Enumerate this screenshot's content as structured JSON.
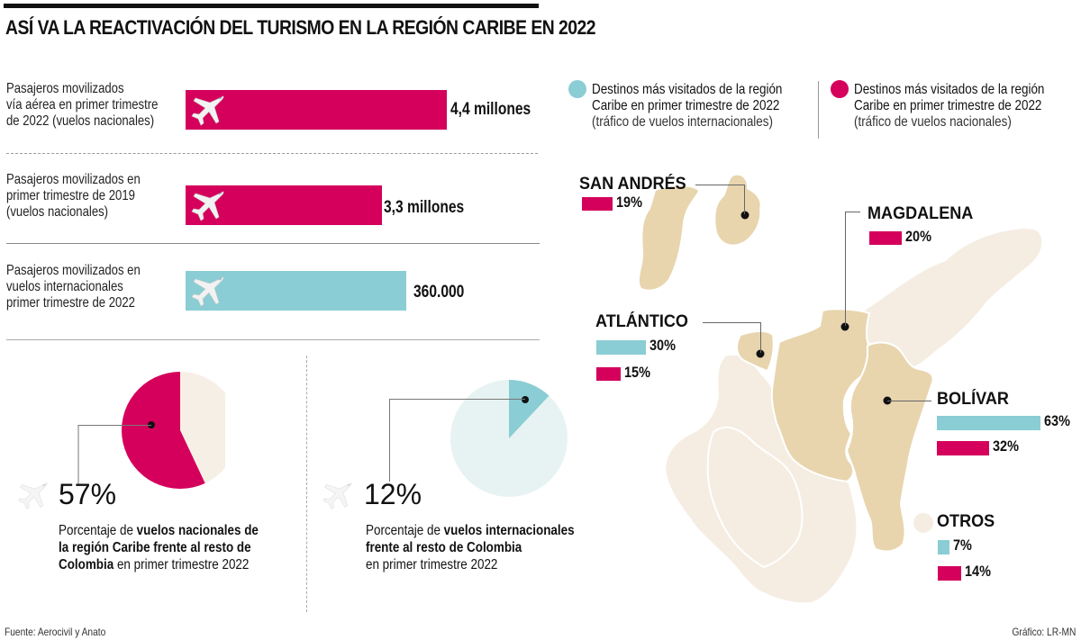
{
  "header": {
    "title": "ASÍ VA LA REACTIVACIÓN DEL TURISMO EN LA REGIÓN CARIBE EN 2022"
  },
  "colors": {
    "magenta": "#d4005c",
    "cyan": "#8acdd4",
    "map_highlight": "#e8d5ae",
    "map_other": "#f5ede2",
    "pie_bg_nat": "#f6efe6",
    "pie_bg_int": "#e6f3f2"
  },
  "chart_data": [
    {
      "type": "bar",
      "title": "Pasajeros movilizados",
      "categories": [
        "Pasajeros movilizados vía aérea en primer trimestre de 2022 (vuelos nacionales)",
        "Pasajeros movilizados en primer trimestre de 2019 (vuelos nacionales)",
        "Pasajeros movilizados en vuelos internacionales primer trimestre de 2022"
      ],
      "values": [
        4400000,
        3300000,
        360000
      ],
      "value_labels": [
        "4,4 millones",
        "3,3 millones",
        "360.000"
      ],
      "colors": [
        "magenta",
        "magenta",
        "cyan"
      ]
    },
    {
      "type": "pie",
      "title": "Porcentaje de vuelos nacionales de la región Caribe frente al resto de Colombia en primer trimestre 2022",
      "slices": [
        {
          "name": "Región Caribe",
          "value": 57
        },
        {
          "name": "Resto de Colombia",
          "value": 43
        }
      ]
    },
    {
      "type": "pie",
      "title": "Porcentaje de vuelos internacionales frente al resto de Colombia en primer trimestre 2022",
      "slices": [
        {
          "name": "Región Caribe",
          "value": 12
        },
        {
          "name": "Resto de Colombia",
          "value": 88
        }
      ]
    },
    {
      "type": "bar",
      "title": "Destinos más visitados de la región Caribe en primer trimestre de 2022",
      "categories": [
        "San Andrés",
        "Magdalena",
        "Atlántico",
        "Bolívar",
        "Otros"
      ],
      "series": [
        {
          "name": "Tráfico de vuelos internacionales",
          "values": [
            null,
            null,
            30,
            63,
            7
          ]
        },
        {
          "name": "Tráfico de vuelos nacionales",
          "values": [
            19,
            20,
            15,
            32,
            14
          ]
        }
      ],
      "unit": "%"
    }
  ],
  "bars": [
    {
      "label": "Pasajeros movilizados\nvía aérea en primer trimestre\nde 2022 (vuelos nacionales)",
      "value_label": "4,4 millones",
      "value": 4.4,
      "color": "magenta"
    },
    {
      "label": "Pasajeros movilizados en\nprimer trimestre de 2019\n(vuelos nacionales)",
      "value_label": "3,3 millones",
      "value": 3.3,
      "color": "magenta"
    },
    {
      "label": "Pasajeros movilizados en\nvuelos internacionales\nprimer trimestre de 2022",
      "value_label": "360.000",
      "value": 0.36,
      "color": "cyan"
    }
  ],
  "pies": [
    {
      "value": 57,
      "value_label": "57%",
      "pre": "Porcentaje de ",
      "bold1": "vuelos nacionales de",
      "line2": "la región Caribe frente al resto de",
      "bold3": "Colombia",
      "post3": " en primer trimestre 2022"
    },
    {
      "value": 12,
      "value_label": "12%",
      "pre": "Porcentaje de ",
      "bold1": "vuelos internacionales",
      "line2": "frente al resto de Colombia",
      "line3": "en primer trimestre 2022"
    }
  ],
  "legend": {
    "international": {
      "line1": "Destinos más visitados de la región",
      "line2": "Caribe en primer trimestre de 2022",
      "sub": "(tráfico de vuelos internacionales)"
    },
    "national": {
      "line1": "Destinos más visitados de la región",
      "line2": "Caribe en primer trimestre de 2022",
      "sub": "(tráfico de vuelos nacionales)"
    }
  },
  "regions": {
    "san_andres": {
      "name": "SAN ANDRÉS",
      "nat": 19,
      "nat_label": "19%"
    },
    "magdalena": {
      "name": "MAGDALENA",
      "nat": 20,
      "nat_label": "20%"
    },
    "atlantico": {
      "name": "ATLÁNTICO",
      "int": 30,
      "int_label": "30%",
      "nat": 15,
      "nat_label": "15%"
    },
    "bolivar": {
      "name": "BOLÍVAR",
      "int": 63,
      "int_label": "63%",
      "nat": 32,
      "nat_label": "32%"
    },
    "otros": {
      "name": "OTROS",
      "int": 7,
      "int_label": "7%",
      "nat": 14,
      "nat_label": "14%"
    }
  },
  "footer": {
    "source": "Fuente: Aerocivil y Anato",
    "credit": "Gráfico: LR-MN"
  }
}
